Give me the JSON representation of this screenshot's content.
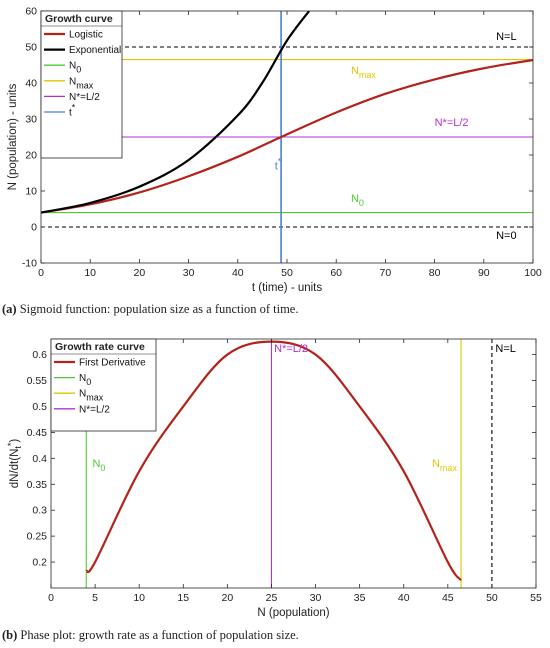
{
  "captions": {
    "a_tag": "(a)",
    "a_text": " Sigmoid function: population size as a function of time.",
    "b_tag": "(b)",
    "b_text": " Phase plot: growth rate as a function of population size."
  },
  "colors": {
    "logistic": "#b2241b",
    "exponential": "#000000",
    "n0": "#4ccc32",
    "nmax": "#e0c600",
    "nstar": "#b030d8",
    "tstar": "#4a7fd8",
    "dashed": "#000000"
  },
  "chart_data": [
    {
      "type": "line",
      "title": "",
      "xlabel": "t (time) - units",
      "ylabel": "N (population) - units",
      "xlim": [
        0,
        100
      ],
      "ylim": [
        -10,
        60
      ],
      "xticks": [
        0,
        10,
        20,
        30,
        40,
        50,
        60,
        70,
        80,
        90,
        100
      ],
      "yticks": [
        -10,
        0,
        10,
        20,
        30,
        40,
        50,
        60
      ],
      "grid": false,
      "legend": {
        "title": "Growth curve",
        "placement": "top-left",
        "entries": [
          "Logistic",
          "Exponential",
          "N0",
          "Nmax",
          "N*=L/2",
          "t*"
        ]
      },
      "series": [
        {
          "name": "Logistic",
          "x": [
            0,
            10,
            20,
            30,
            40,
            48.8,
            60,
            70,
            80,
            90,
            100
          ],
          "y": [
            4.0,
            6.3,
            9.6,
            14.1,
            19.5,
            25.0,
            31.8,
            37.0,
            41.0,
            44.1,
            46.4
          ]
        },
        {
          "name": "Exponential",
          "x": [
            0,
            10,
            20,
            30,
            40,
            45,
            50,
            54.5
          ],
          "y": [
            4.0,
            6.7,
            11.2,
            18.6,
            31.0,
            40.1,
            51.8,
            60.0
          ]
        }
      ],
      "hlines": [
        {
          "name": "N0",
          "y": 4,
          "label": "N",
          "sub": "0",
          "label_x": 63,
          "label_y": 7
        },
        {
          "name": "Nmax",
          "y": 46.5,
          "label": "N",
          "sub": "max",
          "label_x": 63,
          "label_y": 42.5
        },
        {
          "name": "N*=L/2",
          "y": 25,
          "label": "N*=L/2",
          "label_x": 80,
          "label_y": 28
        },
        {
          "name": "N=L",
          "y": 50,
          "label": "N=L",
          "label_x": 92.5,
          "label_y": 52,
          "dashed": true
        },
        {
          "name": "N=0",
          "y": 0,
          "label": "N=0",
          "label_x": 92.5,
          "label_y": -3.3,
          "dashed": true
        }
      ],
      "vlines": [
        {
          "name": "t*",
          "x": 48.8,
          "label": "t",
          "sup": "*",
          "label_x": 47.5,
          "label_y": 16
        }
      ]
    },
    {
      "type": "line",
      "title": "",
      "xlabel": "N (population)",
      "ylabel": "dN/dt(N_t*)",
      "xlim": [
        0,
        55
      ],
      "ylim": [
        0.15,
        0.63
      ],
      "xticks": [
        0,
        5,
        10,
        15,
        20,
        25,
        30,
        35,
        40,
        45,
        50,
        55
      ],
      "yticks": [
        0.2,
        0.25,
        0.3,
        0.35,
        0.4,
        0.45,
        0.5,
        0.55,
        0.6
      ],
      "grid": false,
      "legend": {
        "title": "Growth rate curve",
        "placement": "top-left",
        "entries": [
          "First Derivative",
          "N0",
          "Nmax",
          "N*=L/2"
        ]
      },
      "series": [
        {
          "name": "First Derivative",
          "x": [
            4,
            5,
            10,
            15,
            20,
            25,
            30,
            35,
            40,
            45,
            46.5
          ],
          "y": [
            0.183,
            0.2,
            0.375,
            0.5,
            0.6,
            0.625,
            0.6,
            0.5,
            0.375,
            0.2,
            0.165
          ]
        }
      ],
      "hlines": [],
      "vlines": [
        {
          "name": "N0",
          "x": 4,
          "label": "N",
          "sub": "0",
          "label_x": 4.7,
          "label_y": 0.383
        },
        {
          "name": "Nmax",
          "x": 46.5,
          "label": "N",
          "sub": "max",
          "label_x": 43.2,
          "label_y": 0.383
        },
        {
          "name": "N*=L/2",
          "x": 25,
          "label": "N*=L/2",
          "label_x": 25.3,
          "label_y": 0.605
        },
        {
          "name": "N=L",
          "x": 50,
          "label": "N=L",
          "label_x": 50.4,
          "label_y": 0.605,
          "dashed": true
        }
      ]
    }
  ]
}
